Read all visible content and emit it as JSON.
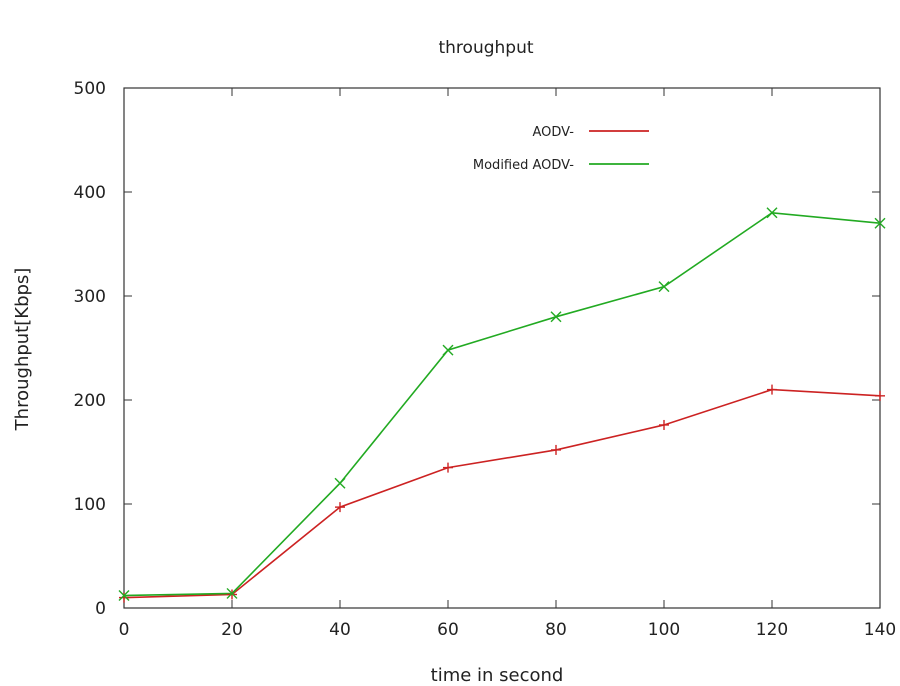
{
  "chart_data": {
    "type": "line",
    "title": "throughput",
    "xlabel": "time in second",
    "ylabel": "Throughput[Kbps]",
    "xlim": [
      0,
      140
    ],
    "ylim": [
      0,
      500
    ],
    "xticks": [
      "0",
      "20",
      "40",
      "60",
      "80",
      "100",
      "120",
      "140"
    ],
    "yticks": [
      "0",
      "100",
      "200",
      "300",
      "400",
      "500"
    ],
    "grid": false,
    "legend_position": "top-right",
    "x": [
      0,
      20,
      40,
      60,
      80,
      100,
      120,
      140
    ],
    "series": [
      {
        "name": "AODV-",
        "color": "#cc2222",
        "marker": "plus",
        "values": [
          10,
          13,
          97,
          135,
          152,
          176,
          210,
          204
        ]
      },
      {
        "name": "Modified AODV-",
        "color": "#22aa22",
        "marker": "cross",
        "values": [
          12,
          14,
          120,
          248,
          280,
          309,
          380,
          370
        ]
      }
    ]
  }
}
